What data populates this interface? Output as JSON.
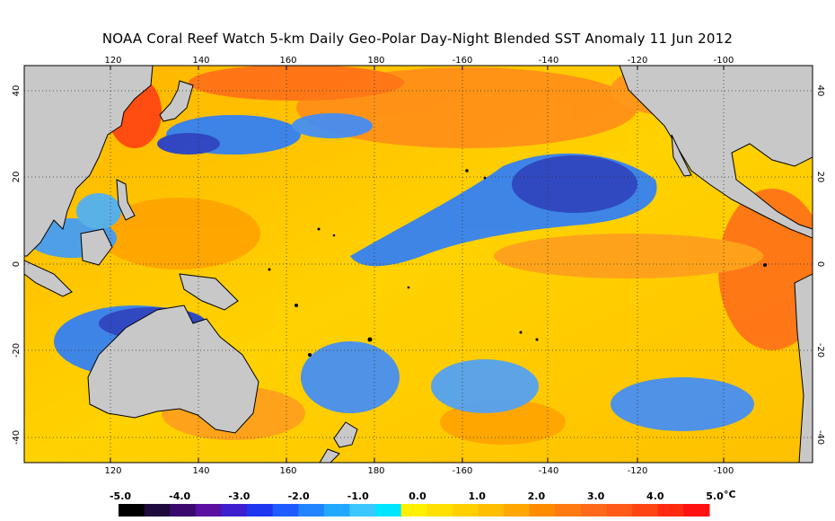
{
  "title": "NOAA Coral Reef Watch 5-km Daily Geo-Polar Day-Night Blended SST Anomaly    11 Jun 2012",
  "map": {
    "lon_labels": [
      "120",
      "140",
      "160",
      "180",
      "-160",
      "-140",
      "-120",
      "-100"
    ],
    "lat_labels": [
      "40",
      "20",
      "0",
      "-20",
      "-40"
    ],
    "colors": {
      "land": "#c8c8c8",
      "warm": "#ffd400",
      "hot": "#ff6a1f",
      "cool": "#2a7dff",
      "cold": "#1a3bd6"
    }
  },
  "colorbar": {
    "labels": [
      "-5.0",
      "-4.0",
      "-3.0",
      "-2.0",
      "-1.0",
      "0.0",
      "1.0",
      "2.0",
      "3.0",
      "4.0",
      "5.0"
    ],
    "unit": "°C",
    "colors": [
      "#000000",
      "#1e0a3c",
      "#3a0a6e",
      "#5a0fa0",
      "#3d1fd0",
      "#1f36f0",
      "#1e5cff",
      "#2185ff",
      "#23a8ff",
      "#3cc8ff",
      "#00e5ff",
      "#fff000",
      "#ffe000",
      "#ffd000",
      "#ffbe00",
      "#ffa600",
      "#ff8c00",
      "#ff7a10",
      "#ff6a1a",
      "#ff5a1a",
      "#ff4414",
      "#ff2a10",
      "#ff1010"
    ]
  }
}
